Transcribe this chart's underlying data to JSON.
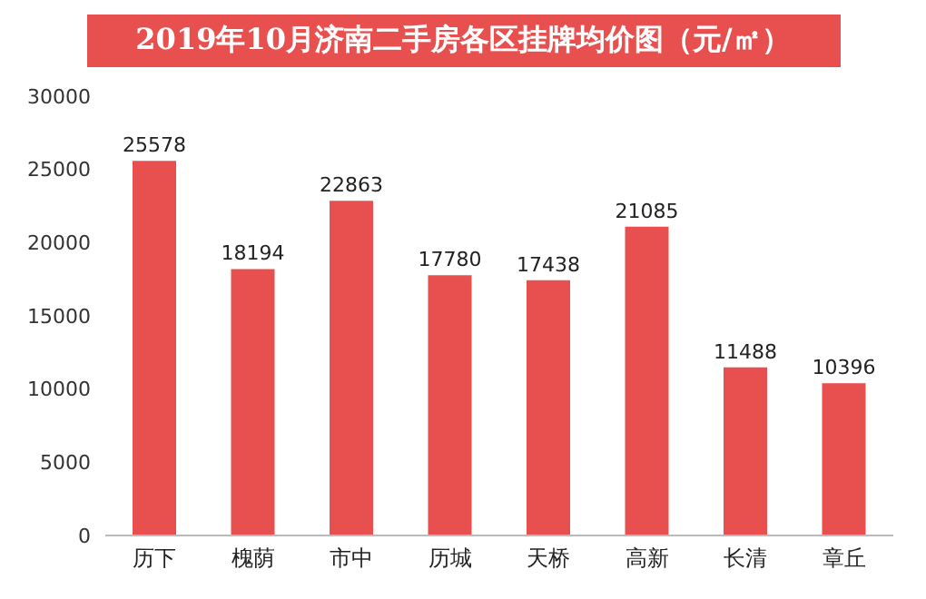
{
  "chart_data": {
    "type": "bar",
    "title": "2019年10月济南二手房各区挂牌均价图（元/㎡）",
    "categories": [
      "历下",
      "槐荫",
      "市中",
      "历城",
      "天桥",
      "高新",
      "长清",
      "章丘"
    ],
    "values": [
      25578,
      18194,
      22863,
      17780,
      17438,
      21085,
      11488,
      10396
    ],
    "color": "#e8504f",
    "ylim": [
      0,
      30000
    ],
    "yticks": [
      0,
      5000,
      10000,
      15000,
      20000,
      25000,
      30000
    ],
    "grid": false,
    "data_labels": true
  }
}
